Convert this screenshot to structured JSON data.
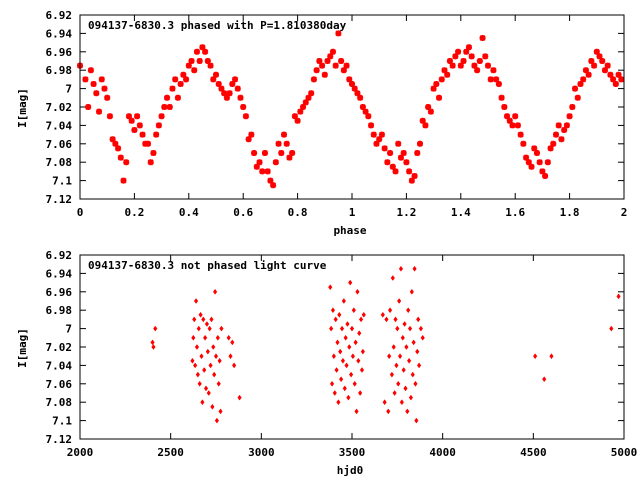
{
  "chart_data": [
    {
      "type": "scatter",
      "title": "094137-6830.3 phased with P=1.810380day",
      "xlabel": "phase",
      "ylabel": "I[mag]",
      "xlim": [
        0,
        2
      ],
      "ylim": [
        7.12,
        6.92
      ],
      "y_inverted": true,
      "grid": false,
      "color": "#ff0000",
      "marker": "star",
      "xticks": [
        "0",
        "0.2",
        "0.4",
        "0.6",
        "0.8",
        "1",
        "1.2",
        "1.4",
        "1.6",
        "1.8",
        "2"
      ],
      "yticks": [
        "6.92",
        "6.94",
        "6.96",
        "6.98",
        "7",
        "7.02",
        "7.04",
        "7.06",
        "7.08",
        "7.1",
        "7.12"
      ],
      "points": [
        [
          0.0,
          6.975
        ],
        [
          0.02,
          6.99
        ],
        [
          0.03,
          7.02
        ],
        [
          0.04,
          6.98
        ],
        [
          0.05,
          6.995
        ],
        [
          0.06,
          7.005
        ],
        [
          0.07,
          7.025
        ],
        [
          0.08,
          6.99
        ],
        [
          0.09,
          7.0
        ],
        [
          0.1,
          7.01
        ],
        [
          0.11,
          7.03
        ],
        [
          0.12,
          7.055
        ],
        [
          0.13,
          7.06
        ],
        [
          0.14,
          7.065
        ],
        [
          0.15,
          7.075
        ],
        [
          0.16,
          7.1
        ],
        [
          0.17,
          7.08
        ],
        [
          0.18,
          7.03
        ],
        [
          0.19,
          7.035
        ],
        [
          0.2,
          7.045
        ],
        [
          0.21,
          7.03
        ],
        [
          0.22,
          7.04
        ],
        [
          0.23,
          7.05
        ],
        [
          0.24,
          7.06
        ],
        [
          0.25,
          7.06
        ],
        [
          0.26,
          7.08
        ],
        [
          0.27,
          7.07
        ],
        [
          0.28,
          7.05
        ],
        [
          0.29,
          7.04
        ],
        [
          0.3,
          7.03
        ],
        [
          0.31,
          7.02
        ],
        [
          0.32,
          7.01
        ],
        [
          0.33,
          7.02
        ],
        [
          0.34,
          7.0
        ],
        [
          0.35,
          6.99
        ],
        [
          0.36,
          7.01
        ],
        [
          0.37,
          6.995
        ],
        [
          0.38,
          6.985
        ],
        [
          0.39,
          6.99
        ],
        [
          0.4,
          6.975
        ],
        [
          0.41,
          6.97
        ],
        [
          0.42,
          6.98
        ],
        [
          0.43,
          6.96
        ],
        [
          0.44,
          6.97
        ],
        [
          0.45,
          6.955
        ],
        [
          0.46,
          6.96
        ],
        [
          0.47,
          6.97
        ],
        [
          0.48,
          6.975
        ],
        [
          0.49,
          6.99
        ],
        [
          0.5,
          6.985
        ],
        [
          0.51,
          6.995
        ],
        [
          0.52,
          7.0
        ],
        [
          0.53,
          7.005
        ],
        [
          0.54,
          7.01
        ],
        [
          0.55,
          7.005
        ],
        [
          0.56,
          6.995
        ],
        [
          0.57,
          6.99
        ],
        [
          0.58,
          7.0
        ],
        [
          0.59,
          7.01
        ],
        [
          0.6,
          7.02
        ],
        [
          0.61,
          7.03
        ],
        [
          0.62,
          7.055
        ],
        [
          0.63,
          7.05
        ],
        [
          0.64,
          7.07
        ],
        [
          0.65,
          7.085
        ],
        [
          0.66,
          7.08
        ],
        [
          0.67,
          7.09
        ],
        [
          0.68,
          7.07
        ],
        [
          0.69,
          7.09
        ],
        [
          0.7,
          7.1
        ],
        [
          0.71,
          7.105
        ],
        [
          0.72,
          7.08
        ],
        [
          0.73,
          7.06
        ],
        [
          0.74,
          7.07
        ],
        [
          0.75,
          7.05
        ],
        [
          0.76,
          7.06
        ],
        [
          0.77,
          7.075
        ],
        [
          0.78,
          7.07
        ],
        [
          0.79,
          7.03
        ],
        [
          0.8,
          7.035
        ],
        [
          0.81,
          7.025
        ],
        [
          0.82,
          7.02
        ],
        [
          0.83,
          7.015
        ],
        [
          0.84,
          7.01
        ],
        [
          0.85,
          7.005
        ],
        [
          0.86,
          6.99
        ],
        [
          0.87,
          6.98
        ],
        [
          0.88,
          6.97
        ],
        [
          0.89,
          6.975
        ],
        [
          0.9,
          6.985
        ],
        [
          0.91,
          6.97
        ],
        [
          0.92,
          6.965
        ],
        [
          0.93,
          6.96
        ],
        [
          0.94,
          6.975
        ],
        [
          0.95,
          6.94
        ],
        [
          0.96,
          6.97
        ],
        [
          0.97,
          6.98
        ],
        [
          0.98,
          6.975
        ],
        [
          0.99,
          6.99
        ],
        [
          1.0,
          6.995
        ],
        [
          1.01,
          7.0
        ],
        [
          1.02,
          7.005
        ],
        [
          1.03,
          7.01
        ],
        [
          1.04,
          7.02
        ],
        [
          1.05,
          7.025
        ],
        [
          1.06,
          7.03
        ],
        [
          1.07,
          7.04
        ],
        [
          1.08,
          7.05
        ],
        [
          1.09,
          7.06
        ],
        [
          1.1,
          7.055
        ],
        [
          1.11,
          7.05
        ],
        [
          1.12,
          7.065
        ],
        [
          1.13,
          7.08
        ],
        [
          1.14,
          7.07
        ],
        [
          1.15,
          7.085
        ],
        [
          1.16,
          7.09
        ],
        [
          1.17,
          7.06
        ],
        [
          1.18,
          7.075
        ],
        [
          1.19,
          7.07
        ],
        [
          1.2,
          7.08
        ],
        [
          1.21,
          7.09
        ],
        [
          1.22,
          7.1
        ],
        [
          1.23,
          7.095
        ],
        [
          1.24,
          7.07
        ],
        [
          1.25,
          7.06
        ],
        [
          1.26,
          7.035
        ],
        [
          1.27,
          7.04
        ],
        [
          1.28,
          7.02
        ],
        [
          1.29,
          7.025
        ],
        [
          1.3,
          7.0
        ],
        [
          1.31,
          6.995
        ],
        [
          1.32,
          7.01
        ],
        [
          1.33,
          6.99
        ],
        [
          1.34,
          6.98
        ],
        [
          1.35,
          6.985
        ],
        [
          1.36,
          6.97
        ],
        [
          1.37,
          6.975
        ],
        [
          1.38,
          6.965
        ],
        [
          1.39,
          6.96
        ],
        [
          1.4,
          6.975
        ],
        [
          1.41,
          6.97
        ],
        [
          1.42,
          6.96
        ],
        [
          1.43,
          6.955
        ],
        [
          1.44,
          6.965
        ],
        [
          1.45,
          6.975
        ],
        [
          1.46,
          6.98
        ],
        [
          1.47,
          6.97
        ],
        [
          1.48,
          6.945
        ],
        [
          1.49,
          6.965
        ],
        [
          1.5,
          6.975
        ],
        [
          1.51,
          6.99
        ],
        [
          1.52,
          6.98
        ],
        [
          1.53,
          6.99
        ],
        [
          1.54,
          6.995
        ],
        [
          1.55,
          7.01
        ],
        [
          1.56,
          7.02
        ],
        [
          1.57,
          7.03
        ],
        [
          1.58,
          7.035
        ],
        [
          1.59,
          7.04
        ],
        [
          1.6,
          7.03
        ],
        [
          1.61,
          7.04
        ],
        [
          1.62,
          7.05
        ],
        [
          1.63,
          7.06
        ],
        [
          1.64,
          7.075
        ],
        [
          1.65,
          7.08
        ],
        [
          1.66,
          7.085
        ],
        [
          1.67,
          7.065
        ],
        [
          1.68,
          7.07
        ],
        [
          1.69,
          7.08
        ],
        [
          1.7,
          7.09
        ],
        [
          1.71,
          7.095
        ],
        [
          1.72,
          7.08
        ],
        [
          1.73,
          7.065
        ],
        [
          1.74,
          7.06
        ],
        [
          1.75,
          7.05
        ],
        [
          1.76,
          7.04
        ],
        [
          1.77,
          7.055
        ],
        [
          1.78,
          7.045
        ],
        [
          1.79,
          7.04
        ],
        [
          1.8,
          7.03
        ],
        [
          1.81,
          7.02
        ],
        [
          1.82,
          7.0
        ],
        [
          1.83,
          7.01
        ],
        [
          1.84,
          6.995
        ],
        [
          1.85,
          6.99
        ],
        [
          1.86,
          6.98
        ],
        [
          1.87,
          6.985
        ],
        [
          1.88,
          6.97
        ],
        [
          1.89,
          6.975
        ],
        [
          1.9,
          6.96
        ],
        [
          1.91,
          6.965
        ],
        [
          1.92,
          6.97
        ],
        [
          1.93,
          6.98
        ],
        [
          1.94,
          6.975
        ],
        [
          1.95,
          6.985
        ],
        [
          1.96,
          6.99
        ],
        [
          1.97,
          6.995
        ],
        [
          1.98,
          6.985
        ],
        [
          1.99,
          6.99
        ]
      ]
    },
    {
      "type": "scatter",
      "title": "094137-6830.3 not phased light curve",
      "xlabel": "hjd0",
      "ylabel": "I[mag]",
      "xlim": [
        2000,
        5000
      ],
      "ylim": [
        7.12,
        6.92
      ],
      "y_inverted": true,
      "grid": false,
      "color": "#ff0000",
      "marker": "diamond",
      "xticks": [
        "2000",
        "2500",
        "3000",
        "3500",
        "4000",
        "4500",
        "5000"
      ],
      "yticks": [
        "6.92",
        "6.94",
        "6.96",
        "6.98",
        "7",
        "7.02",
        "7.04",
        "7.06",
        "7.08",
        "7.1",
        "7.12"
      ],
      "points": [
        [
          2400,
          7.015
        ],
        [
          2405,
          7.02
        ],
        [
          2415,
          7.0
        ],
        [
          2620,
          7.035
        ],
        [
          2625,
          7.01
        ],
        [
          2630,
          6.99
        ],
        [
          2635,
          7.04
        ],
        [
          2640,
          6.97
        ],
        [
          2645,
          7.02
        ],
        [
          2650,
          7.05
        ],
        [
          2655,
          7.0
        ],
        [
          2660,
          7.06
        ],
        [
          2665,
          6.985
        ],
        [
          2670,
          7.03
        ],
        [
          2675,
          7.08
        ],
        [
          2680,
          6.99
        ],
        [
          2685,
          7.045
        ],
        [
          2690,
          7.01
        ],
        [
          2695,
          7.065
        ],
        [
          2700,
          6.995
        ],
        [
          2705,
          7.025
        ],
        [
          2710,
          7.07
        ],
        [
          2715,
          7.0
        ],
        [
          2720,
          7.04
        ],
        [
          2725,
          6.99
        ],
        [
          2730,
          7.085
        ],
        [
          2735,
          7.02
        ],
        [
          2740,
          7.05
        ],
        [
          2745,
          6.96
        ],
        [
          2750,
          7.03
        ],
        [
          2755,
          7.1
        ],
        [
          2760,
          7.01
        ],
        [
          2765,
          7.06
        ],
        [
          2770,
          7.035
        ],
        [
          2775,
          7.09
        ],
        [
          2780,
          7.0
        ],
        [
          2820,
          7.01
        ],
        [
          2830,
          7.03
        ],
        [
          2840,
          7.015
        ],
        [
          2850,
          7.04
        ],
        [
          2880,
          7.075
        ],
        [
          3380,
          6.955
        ],
        [
          3385,
          7.0
        ],
        [
          3390,
          7.06
        ],
        [
          3395,
          6.98
        ],
        [
          3400,
          7.03
        ],
        [
          3405,
          7.07
        ],
        [
          3410,
          6.99
        ],
        [
          3415,
          7.045
        ],
        [
          3420,
          7.015
        ],
        [
          3425,
          7.08
        ],
        [
          3430,
          6.985
        ],
        [
          3435,
          7.025
        ],
        [
          3440,
          7.055
        ],
        [
          3445,
          7.0
        ],
        [
          3450,
          7.035
        ],
        [
          3455,
          6.97
        ],
        [
          3460,
          7.065
        ],
        [
          3465,
          7.01
        ],
        [
          3470,
          7.04
        ],
        [
          3475,
          6.995
        ],
        [
          3480,
          7.075
        ],
        [
          3485,
          7.02
        ],
        [
          3490,
          6.95
        ],
        [
          3495,
          7.05
        ],
        [
          3500,
          7.0
        ],
        [
          3505,
          7.03
        ],
        [
          3510,
          6.98
        ],
        [
          3515,
          7.06
        ],
        [
          3520,
          7.015
        ],
        [
          3525,
          7.09
        ],
        [
          3530,
          6.96
        ],
        [
          3535,
          7.035
        ],
        [
          3540,
          7.005
        ],
        [
          3545,
          7.07
        ],
        [
          3550,
          6.99
        ],
        [
          3555,
          7.045
        ],
        [
          3560,
          7.025
        ],
        [
          3565,
          6.985
        ],
        [
          3670,
          6.985
        ],
        [
          3680,
          7.08
        ],
        [
          3690,
          6.99
        ],
        [
          3700,
          7.09
        ],
        [
          3705,
          7.03
        ],
        [
          3710,
          6.98
        ],
        [
          3720,
          7.05
        ],
        [
          3725,
          6.945
        ],
        [
          3730,
          7.02
        ],
        [
          3735,
          7.07
        ],
        [
          3740,
          6.99
        ],
        [
          3745,
          7.04
        ],
        [
          3750,
          7.0
        ],
        [
          3755,
          7.06
        ],
        [
          3760,
          6.97
        ],
        [
          3765,
          7.03
        ],
        [
          3770,
          6.935
        ],
        [
          3775,
          7.08
        ],
        [
          3780,
          7.01
        ],
        [
          3785,
          7.045
        ],
        [
          3790,
          6.995
        ],
        [
          3795,
          7.065
        ],
        [
          3800,
          7.02
        ],
        [
          3805,
          7.09
        ],
        [
          3810,
          6.98
        ],
        [
          3815,
          7.035
        ],
        [
          3820,
          7.0
        ],
        [
          3825,
          7.075
        ],
        [
          3830,
          6.96
        ],
        [
          3835,
          7.05
        ],
        [
          3840,
          7.015
        ],
        [
          3845,
          6.935
        ],
        [
          3850,
          7.06
        ],
        [
          3855,
          7.1
        ],
        [
          3860,
          7.025
        ],
        [
          3865,
          6.99
        ],
        [
          3870,
          7.04
        ],
        [
          3880,
          7.0
        ],
        [
          3890,
          7.01
        ],
        [
          4510,
          7.03
        ],
        [
          4560,
          7.055
        ],
        [
          4600,
          7.03
        ],
        [
          4930,
          7.0
        ],
        [
          4970,
          6.965
        ]
      ]
    }
  ]
}
